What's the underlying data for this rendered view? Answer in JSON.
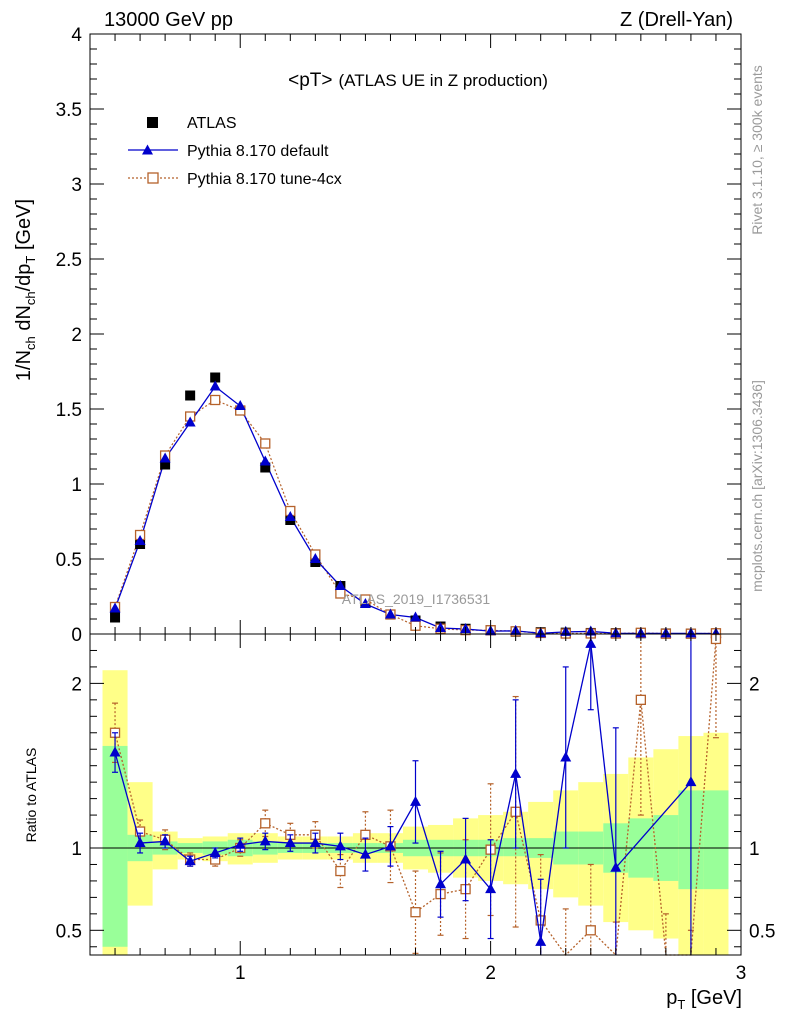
{
  "header": {
    "left": "13000 GeV pp",
    "right": "Z (Drell-Yan)"
  },
  "side_text": {
    "upper": "Rivet 3.1.10, ≥ 300k events",
    "lower": "mcplots.cern.ch [arXiv:1306.3436]"
  },
  "chart_data": {
    "type": "scatter",
    "title_main": "<pT>",
    "title_sub": "(ATLAS UE in Z production)",
    "watermark": "ATLAS_2019_I1736531",
    "ylabel": "1/N_ch dN_ch/dp_T [GeV]",
    "xlabel": "p_T [GeV]",
    "ratio_ylabel": "Ratio to ATLAS",
    "xlim": [
      0.4,
      3.0
    ],
    "ylim": [
      0,
      4
    ],
    "ratio_ylim": [
      0.35,
      2.3
    ],
    "x_ticks": [
      "1",
      "2",
      "3"
    ],
    "y_ticks": [
      "0",
      "0.5",
      "1",
      "1.5",
      "2",
      "2.5",
      "3",
      "3.5",
      "4"
    ],
    "ratio_y_ticks": [
      "0.5",
      "1",
      "2"
    ],
    "legend": [
      "ATLAS",
      "Pythia 8.170 default",
      "Pythia 8.170 tune-4cx"
    ],
    "colors": {
      "data": "#000000",
      "default": "#0000cc",
      "tune": "#b5622b",
      "band_inner": "#99ff99",
      "band_outer": "#ffff88"
    },
    "x": [
      0.5,
      0.6,
      0.7,
      0.8,
      0.9,
      1.0,
      1.1,
      1.2,
      1.3,
      1.4,
      1.5,
      1.6,
      1.7,
      1.8,
      1.9,
      2.0,
      2.1,
      2.2,
      2.3,
      2.4,
      2.5,
      2.6,
      2.7,
      2.8,
      2.9
    ],
    "series": [
      {
        "name": "ATLAS",
        "values": [
          0.11,
          0.6,
          1.13,
          1.59,
          1.71,
          1.49,
          1.11,
          0.76,
          0.48,
          0.32,
          0.21,
          0.13,
          0.09,
          0.05,
          0.035,
          0.025,
          0.015,
          0.012,
          0.009,
          0.007,
          0.006,
          0.005,
          0.004,
          0.003,
          0.002
        ]
      },
      {
        "name": "Pythia 8.170 default",
        "values": [
          0.17,
          0.62,
          1.17,
          1.41,
          1.65,
          1.52,
          1.15,
          0.78,
          0.5,
          0.32,
          0.2,
          0.13,
          0.11,
          0.04,
          0.033,
          0.019,
          0.021,
          0.005,
          0.014,
          0.017,
          0.005,
          0.004,
          0.004,
          0.004,
          0.003
        ],
        "ratio": [
          1.58,
          1.03,
          1.04,
          0.92,
          0.97,
          1.02,
          1.04,
          1.03,
          1.03,
          1.01,
          0.96,
          1.01,
          1.28,
          0.78,
          0.93,
          0.75,
          1.45,
          0.43,
          1.55,
          2.24,
          0.88,
          null,
          null,
          1.4,
          null
        ],
        "ratio_err": [
          0.12,
          0.06,
          0.04,
          0.03,
          0.03,
          0.04,
          0.05,
          0.05,
          0.06,
          0.08,
          0.1,
          0.12,
          0.25,
          0.2,
          0.25,
          0.3,
          0.45,
          0.38,
          0.55,
          0.4,
          0.85,
          null,
          null,
          1.2,
          null
        ]
      },
      {
        "name": "Pythia 8.170 tune-4cx",
        "values": [
          0.18,
          0.66,
          1.19,
          1.45,
          1.56,
          1.49,
          1.27,
          0.82,
          0.53,
          0.27,
          0.23,
          0.13,
          0.055,
          0.035,
          0.026,
          0.025,
          0.018,
          0.007,
          0.003,
          0.0035,
          0.003,
          0.008,
          0.002,
          0.002,
          0.005
        ],
        "ratio": [
          1.7,
          1.1,
          1.05,
          0.93,
          0.93,
          1.0,
          1.15,
          1.08,
          1.08,
          0.86,
          1.08,
          1.01,
          0.61,
          0.72,
          0.75,
          0.99,
          1.22,
          0.56,
          0.33,
          0.5,
          0.25,
          1.9,
          0.3,
          0.2,
          2.27
        ],
        "ratio_err": [
          0.18,
          0.07,
          0.06,
          0.04,
          0.04,
          0.05,
          0.08,
          0.07,
          0.08,
          0.1,
          0.14,
          0.22,
          0.25,
          0.25,
          0.3,
          0.4,
          0.7,
          0.4,
          0.3,
          0.4,
          0.3,
          0.7,
          0.3,
          0.3,
          0.6
        ]
      }
    ],
    "bands": {
      "edges": [
        0.45,
        0.55,
        0.65,
        0.75,
        0.85,
        0.95,
        1.05,
        1.15,
        1.25,
        1.35,
        1.45,
        1.55,
        1.65,
        1.75,
        1.85,
        1.95,
        2.05,
        2.15,
        2.25,
        2.35,
        2.45,
        2.55,
        2.65,
        2.75,
        2.85,
        2.95
      ],
      "inner_lo": [
        0.4,
        0.92,
        0.96,
        0.97,
        0.96,
        0.95,
        0.96,
        0.97,
        0.97,
        0.97,
        0.97,
        0.97,
        0.95,
        0.95,
        0.95,
        0.95,
        0.95,
        0.94,
        0.9,
        0.9,
        0.85,
        0.82,
        0.8,
        0.75,
        0.75
      ],
      "inner_hi": [
        1.62,
        1.08,
        1.04,
        1.03,
        1.04,
        1.05,
        1.04,
        1.03,
        1.03,
        1.03,
        1.03,
        1.03,
        1.05,
        1.05,
        1.05,
        1.05,
        1.06,
        1.06,
        1.1,
        1.1,
        1.15,
        1.18,
        1.2,
        1.35,
        1.35
      ],
      "outer_lo": [
        0.35,
        0.65,
        0.87,
        0.93,
        0.92,
        0.9,
        0.91,
        0.93,
        0.93,
        0.93,
        0.91,
        0.91,
        0.87,
        0.85,
        0.82,
        0.8,
        0.78,
        0.75,
        0.7,
        0.65,
        0.55,
        0.5,
        0.45,
        0.35,
        0.35
      ],
      "outer_hi": [
        2.08,
        1.4,
        1.1,
        1.06,
        1.07,
        1.09,
        1.09,
        1.07,
        1.07,
        1.07,
        1.09,
        1.09,
        1.13,
        1.14,
        1.18,
        1.2,
        1.22,
        1.28,
        1.35,
        1.4,
        1.45,
        1.55,
        1.6,
        1.68,
        1.7
      ]
    }
  }
}
